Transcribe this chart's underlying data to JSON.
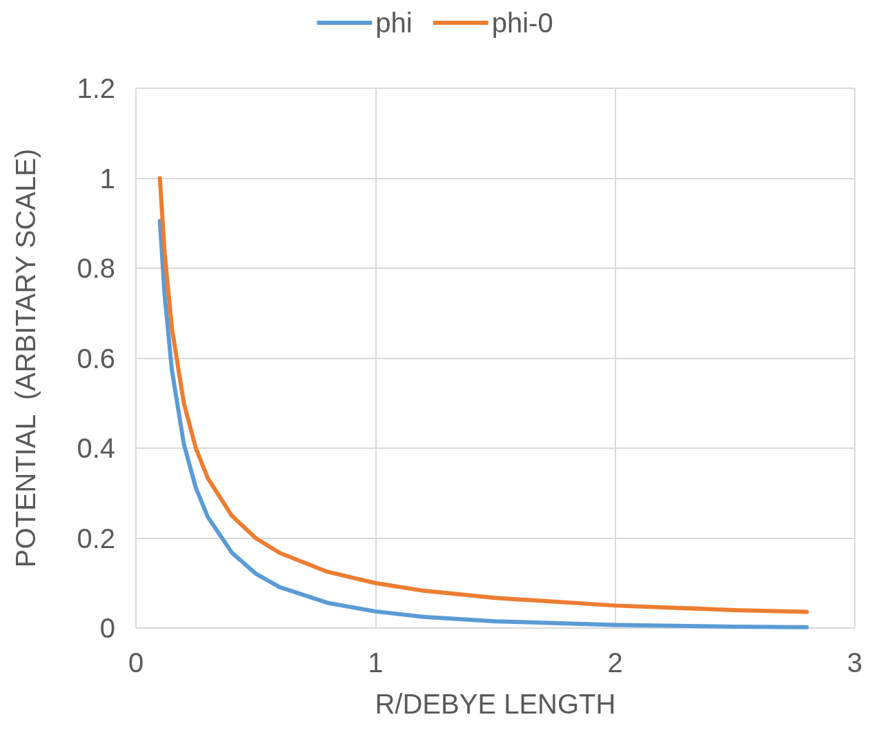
{
  "chart_data": {
    "type": "line",
    "xlabel": "R/DEBYE LENGTH",
    "ylabel": "POTENTIAL  (ARBITARY SCALE)",
    "xlim": [
      0,
      3
    ],
    "xticks": [
      0,
      1,
      2,
      3
    ],
    "ylim": [
      0,
      1.2
    ],
    "yticks": [
      0,
      0.2,
      0.4,
      0.6,
      0.8,
      1,
      1.2
    ],
    "grid": true,
    "legend": "top",
    "x": [
      0.1,
      0.12,
      0.15,
      0.2,
      0.25,
      0.3,
      0.4,
      0.5,
      0.6,
      0.8,
      1.0,
      1.2,
      1.5,
      2.0,
      2.5,
      2.8
    ],
    "series": [
      {
        "name": "phi",
        "color": "#5b9bd5",
        "values": [
          0.905,
          0.739,
          0.574,
          0.409,
          0.312,
          0.247,
          0.168,
          0.121,
          0.091,
          0.056,
          0.037,
          0.025,
          0.015,
          0.007,
          0.003,
          0.002
        ]
      },
      {
        "name": "phi-0",
        "color": "#ed7d31",
        "values": [
          1,
          0.833,
          0.667,
          0.5,
          0.4,
          0.333,
          0.25,
          0.2,
          0.167,
          0.125,
          0.1,
          0.083,
          0.067,
          0.05,
          0.04,
          0.036
        ]
      }
    ]
  }
}
